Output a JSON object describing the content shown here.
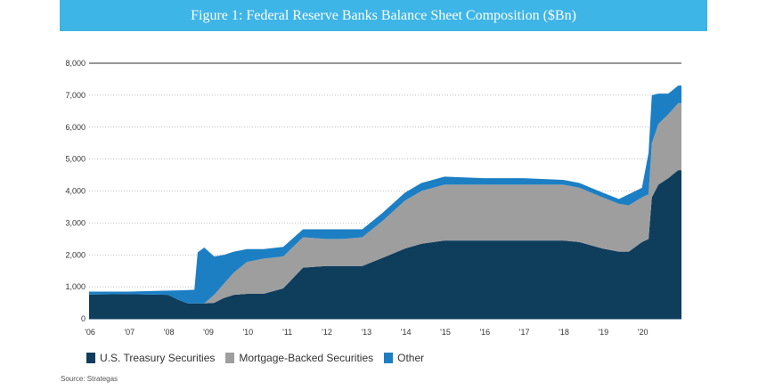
{
  "chart_data": {
    "type": "area",
    "stacked": true,
    "title": "Figure 1: Federal Reserve Banks Balance Sheet Composition ($Bn)",
    "xlabel": "",
    "ylabel": "",
    "ylim": [
      0,
      8000
    ],
    "xlim": [
      "2006-01",
      "2021-01"
    ],
    "yticks": [
      "0",
      "1,000",
      "2,000",
      "3,000",
      "4,000",
      "5,000",
      "6,000",
      "7,000",
      "8,000"
    ],
    "xticks": [
      "'06",
      "'07",
      "'08",
      "'09",
      "'10",
      "'11",
      "'12",
      "'13",
      "'14",
      "'15",
      "'16",
      "'17",
      "'18",
      "'19",
      "'20"
    ],
    "grid": "horizontal dotted",
    "legend_position": "bottom-left",
    "x": [
      "2006-01",
      "2007-01",
      "2008-01",
      "2008-04",
      "2008-07",
      "2008-09",
      "2008-10",
      "2008-12",
      "2009-03",
      "2009-06",
      "2009-09",
      "2010-01",
      "2010-06",
      "2010-12",
      "2011-06",
      "2012-01",
      "2012-06",
      "2012-12",
      "2013-06",
      "2014-01",
      "2014-06",
      "2015-01",
      "2016-01",
      "2017-01",
      "2018-01",
      "2018-06",
      "2019-01",
      "2019-06",
      "2019-09",
      "2020-01",
      "2020-03",
      "2020-04",
      "2020-06",
      "2020-09",
      "2020-12"
    ],
    "series": [
      {
        "name": "U.S. Treasury Securities",
        "color": "#0f3d5c",
        "values": [
          760,
          770,
          750,
          600,
          480,
          480,
          480,
          480,
          500,
          650,
          750,
          780,
          780,
          950,
          1600,
          1650,
          1650,
          1650,
          1900,
          2200,
          2350,
          2450,
          2450,
          2450,
          2450,
          2400,
          2200,
          2100,
          2100,
          2400,
          2500,
          3800,
          4200,
          4400,
          4650
        ]
      },
      {
        "name": "Mortgage-Backed Securities",
        "color": "#9e9e9e",
        "values": [
          0,
          0,
          0,
          0,
          0,
          0,
          0,
          0,
          250,
          450,
          700,
          1000,
          1100,
          1000,
          950,
          850,
          850,
          900,
          1150,
          1500,
          1650,
          1750,
          1750,
          1750,
          1750,
          1700,
          1600,
          1500,
          1450,
          1400,
          1400,
          1700,
          1900,
          2000,
          2100
        ]
      },
      {
        "name": "Other",
        "color": "#1c7fc4",
        "values": [
          90,
          80,
          130,
          290,
          420,
          430,
          1600,
          1750,
          1200,
          900,
          650,
          400,
          300,
          300,
          250,
          300,
          300,
          250,
          250,
          250,
          250,
          250,
          200,
          200,
          150,
          150,
          150,
          150,
          350,
          300,
          1300,
          1500,
          950,
          650,
          550
        ]
      }
    ]
  },
  "source": "Source: Strategas",
  "header_color": "#3db5e6"
}
